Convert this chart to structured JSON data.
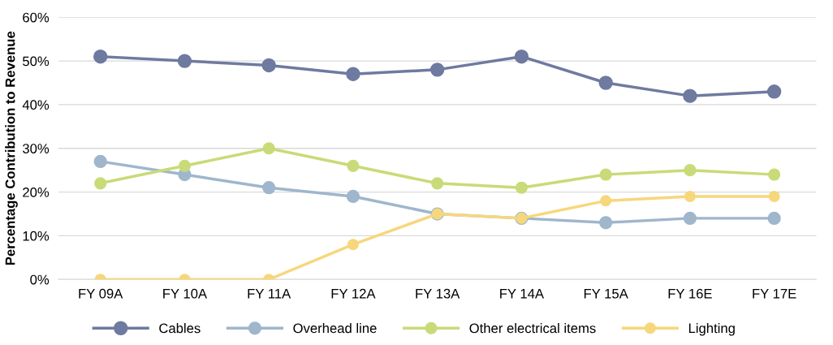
{
  "chart_data": {
    "type": "line",
    "ylabel": "Percentage Contribution to Revenue",
    "categories": [
      "FY 09A",
      "FY 10A",
      "FY 11A",
      "FY 12A",
      "FY 13A",
      "FY 14A",
      "FY 15A",
      "FY 16E",
      "FY 17E"
    ],
    "series": [
      {
        "name": "Cables",
        "color": "#6e7aa0",
        "values": [
          51,
          50,
          49,
          47,
          48,
          51,
          45,
          42,
          43
        ]
      },
      {
        "name": "Overhead line",
        "color": "#9fb6cc",
        "values": [
          27,
          24,
          21,
          19,
          15,
          14,
          13,
          14,
          14
        ]
      },
      {
        "name": "Other electrical items",
        "color": "#c8db78",
        "values": [
          22,
          26,
          30,
          26,
          22,
          21,
          24,
          25,
          24
        ]
      },
      {
        "name": "Lighting",
        "color": "#f7d77c",
        "values": [
          0,
          0,
          0,
          8,
          15,
          14,
          18,
          19,
          19
        ]
      }
    ],
    "ylim": [
      0,
      60
    ],
    "yticks": [
      {
        "value": 0,
        "label": "0%"
      },
      {
        "value": 10,
        "label": "10%"
      },
      {
        "value": 20,
        "label": "20%"
      },
      {
        "value": 30,
        "label": "30%"
      },
      {
        "value": 40,
        "label": "40%"
      },
      {
        "value": 50,
        "label": "50%"
      },
      {
        "value": 60,
        "label": "60%"
      }
    ],
    "grid": "y",
    "legend": "bottom",
    "marker": "circle",
    "line_style": "solid"
  }
}
